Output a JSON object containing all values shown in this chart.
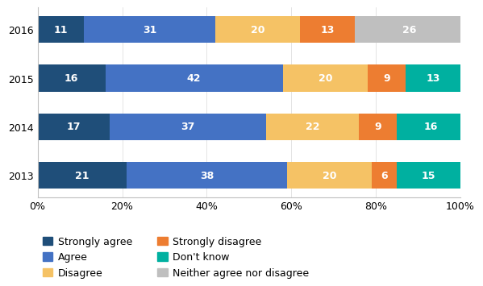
{
  "years": [
    "2013",
    "2014",
    "2015",
    "2016"
  ],
  "segments": [
    {
      "label": "Strongly agree",
      "color": "#1F4E79",
      "values": [
        21,
        17,
        16,
        11
      ]
    },
    {
      "label": "Agree",
      "color": "#4472C4",
      "values": [
        38,
        37,
        42,
        31
      ]
    },
    {
      "label": "Disagree",
      "color": "#F5C265",
      "values": [
        20,
        22,
        20,
        20
      ]
    },
    {
      "label": "Strongly disagree",
      "color": "#ED7D31",
      "values": [
        6,
        9,
        9,
        13
      ]
    },
    {
      "label": "Don't know",
      "color": "#00B0A0",
      "values": [
        15,
        16,
        13,
        0
      ]
    },
    {
      "label": "Neither agree nor disagree",
      "color": "#BFBFBF",
      "values": [
        0,
        0,
        0,
        26
      ]
    }
  ],
  "xlim": [
    0,
    100
  ],
  "xticks": [
    0,
    20,
    40,
    60,
    80,
    100
  ],
  "xticklabels": [
    "0%",
    "20%",
    "40%",
    "60%",
    "80%",
    "100%"
  ],
  "bar_height": 0.55,
  "text_color": "#FFFFFF",
  "fontsize_bar": 9,
  "fontsize_axis": 9,
  "fontsize_legend": 9,
  "legend_col1": [
    "Strongly agree",
    "Disagree",
    "Don't know"
  ],
  "legend_col2": [
    "Agree",
    "Strongly disagree",
    "Neither agree nor disagree"
  ]
}
